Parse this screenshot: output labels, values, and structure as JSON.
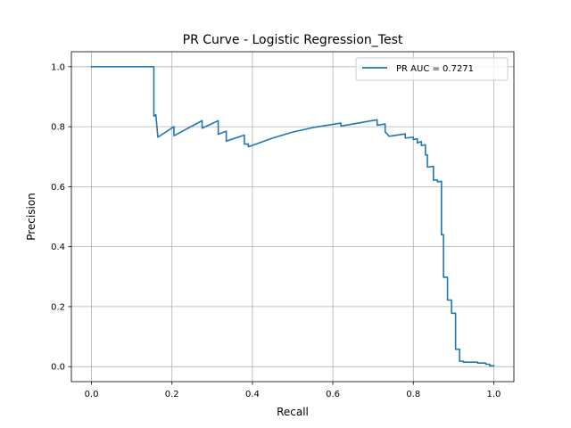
{
  "chart_data": {
    "type": "line",
    "title": "PR Curve - Logistic Regression_Test",
    "xlabel": "Recall",
    "ylabel": "Precision",
    "xlim": [
      -0.05,
      1.05
    ],
    "ylim": [
      -0.05,
      1.05
    ],
    "x_ticks": [
      0.0,
      0.2,
      0.4,
      0.6,
      0.8,
      1.0
    ],
    "x_tick_labels": [
      "0.0",
      "0.2",
      "0.4",
      "0.6",
      "0.8",
      "1.0"
    ],
    "y_ticks": [
      0.0,
      0.2,
      0.4,
      0.6,
      0.8,
      1.0
    ],
    "y_tick_labels": [
      "0.0",
      "0.2",
      "0.4",
      "0.6",
      "0.8",
      "1.0"
    ],
    "grid": true,
    "legend_position": "top-right",
    "series": [
      {
        "name": "PR AUC = 0.7271",
        "color": "#1f77b4",
        "x": [
          0.0,
          0.155,
          0.155,
          0.155,
          0.16,
          0.16,
          0.165,
          0.205,
          0.205,
          0.275,
          0.275,
          0.315,
          0.315,
          0.335,
          0.335,
          0.38,
          0.38,
          0.39,
          0.39,
          0.45,
          0.5,
          0.55,
          0.62,
          0.62,
          0.71,
          0.71,
          0.73,
          0.73,
          0.74,
          0.74,
          0.78,
          0.78,
          0.8,
          0.8,
          0.81,
          0.81,
          0.82,
          0.82,
          0.83,
          0.83,
          0.835,
          0.835,
          0.85,
          0.85,
          0.86,
          0.86,
          0.87,
          0.87,
          0.875,
          0.875,
          0.885,
          0.885,
          0.895,
          0.895,
          0.905,
          0.905,
          0.915,
          0.915,
          0.925,
          0.925,
          0.94,
          0.96,
          0.96,
          0.98,
          0.98,
          0.99,
          0.99,
          1.0
        ],
        "y": [
          1.0,
          1.0,
          0.94,
          0.835,
          0.84,
          0.84,
          0.765,
          0.8,
          0.77,
          0.82,
          0.795,
          0.82,
          0.775,
          0.785,
          0.752,
          0.772,
          0.742,
          0.742,
          0.733,
          0.762,
          0.782,
          0.797,
          0.812,
          0.802,
          0.823,
          0.805,
          0.809,
          0.783,
          0.768,
          0.768,
          0.776,
          0.762,
          0.765,
          0.757,
          0.76,
          0.746,
          0.751,
          0.737,
          0.74,
          0.706,
          0.706,
          0.665,
          0.668,
          0.622,
          0.622,
          0.616,
          0.618,
          0.44,
          0.44,
          0.298,
          0.298,
          0.222,
          0.222,
          0.178,
          0.178,
          0.058,
          0.058,
          0.018,
          0.018,
          0.015,
          0.015,
          0.015,
          0.012,
          0.012,
          0.008,
          0.008,
          0.003,
          0.003
        ]
      }
    ]
  }
}
